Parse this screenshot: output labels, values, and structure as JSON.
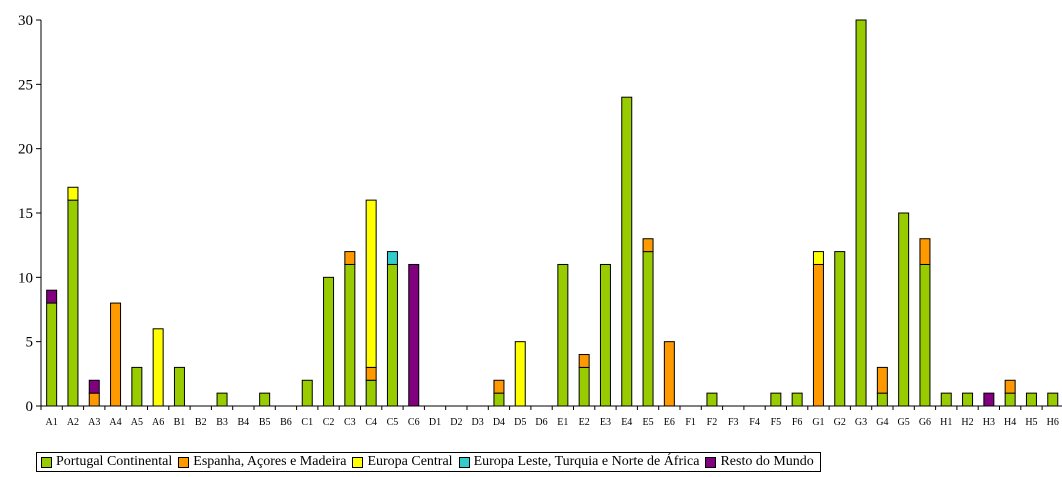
{
  "chart_data": {
    "type": "bar",
    "stacked": true,
    "title": "",
    "xlabel": "",
    "ylabel": "",
    "ylim": [
      0,
      30
    ],
    "yticks": [
      0,
      5,
      10,
      15,
      20,
      25,
      30
    ],
    "grid": false,
    "legend_position": "bottom",
    "categories": [
      "A1",
      "A2",
      "A3",
      "A4",
      "A5",
      "A6",
      "B1",
      "B2",
      "B3",
      "B4",
      "B5",
      "B6",
      "C1",
      "C2",
      "C3",
      "C4",
      "C5",
      "C6",
      "D1",
      "D2",
      "D3",
      "D4",
      "D5",
      "D6",
      "E1",
      "E2",
      "E3",
      "E4",
      "E5",
      "E6",
      "F1",
      "F2",
      "F3",
      "F4",
      "F5",
      "F6",
      "G1",
      "G2",
      "G3",
      "G4",
      "G5",
      "G6",
      "H1",
      "H2",
      "H3",
      "H4",
      "H5",
      "H6"
    ],
    "series": [
      {
        "name": "Portugal Continental",
        "color": "#99CC00",
        "values": [
          8,
          16,
          0,
          0,
          3,
          0,
          3,
          0,
          1,
          0,
          1,
          0,
          2,
          10,
          11,
          2,
          11,
          0,
          0,
          0,
          0,
          1,
          0,
          0,
          11,
          3,
          11,
          24,
          12,
          0,
          0,
          1,
          0,
          0,
          1,
          1,
          0,
          12,
          30,
          1,
          15,
          11,
          1,
          1,
          0,
          1,
          1,
          1
        ]
      },
      {
        "name": "Espanha, Açores e Madeira",
        "color": "#FF9900",
        "values": [
          0,
          0,
          1,
          8,
          0,
          0,
          0,
          0,
          0,
          0,
          0,
          0,
          0,
          0,
          1,
          1,
          0,
          0,
          0,
          0,
          0,
          1,
          0,
          0,
          0,
          1,
          0,
          0,
          1,
          5,
          0,
          0,
          0,
          0,
          0,
          0,
          11,
          0,
          0,
          2,
          0,
          2,
          0,
          0,
          0,
          1,
          0,
          0
        ]
      },
      {
        "name": "Europa Central",
        "color": "#FFFF00",
        "values": [
          0,
          1,
          0,
          0,
          0,
          6,
          0,
          0,
          0,
          0,
          0,
          0,
          0,
          0,
          0,
          13,
          0,
          0,
          0,
          0,
          0,
          0,
          5,
          0,
          0,
          0,
          0,
          0,
          0,
          0,
          0,
          0,
          0,
          0,
          0,
          0,
          1,
          0,
          0,
          0,
          0,
          0,
          0,
          0,
          0,
          0,
          0,
          0
        ]
      },
      {
        "name": "Europa Leste, Turquia e Norte de África",
        "color": "#33CCCC",
        "values": [
          0,
          0,
          0,
          0,
          0,
          0,
          0,
          0,
          0,
          0,
          0,
          0,
          0,
          0,
          0,
          0,
          1,
          0,
          0,
          0,
          0,
          0,
          0,
          0,
          0,
          0,
          0,
          0,
          0,
          0,
          0,
          0,
          0,
          0,
          0,
          0,
          0,
          0,
          0,
          0,
          0,
          0,
          0,
          0,
          0,
          0,
          0,
          0
        ]
      },
      {
        "name": "Resto do Mundo",
        "color": "#800080",
        "values": [
          1,
          0,
          1,
          0,
          0,
          0,
          0,
          0,
          0,
          0,
          0,
          0,
          0,
          0,
          0,
          0,
          0,
          11,
          0,
          0,
          0,
          0,
          0,
          0,
          0,
          0,
          0,
          0,
          0,
          0,
          0,
          0,
          0,
          0,
          0,
          0,
          0,
          0,
          0,
          0,
          0,
          0,
          0,
          0,
          1,
          0,
          0,
          0
        ]
      }
    ]
  }
}
